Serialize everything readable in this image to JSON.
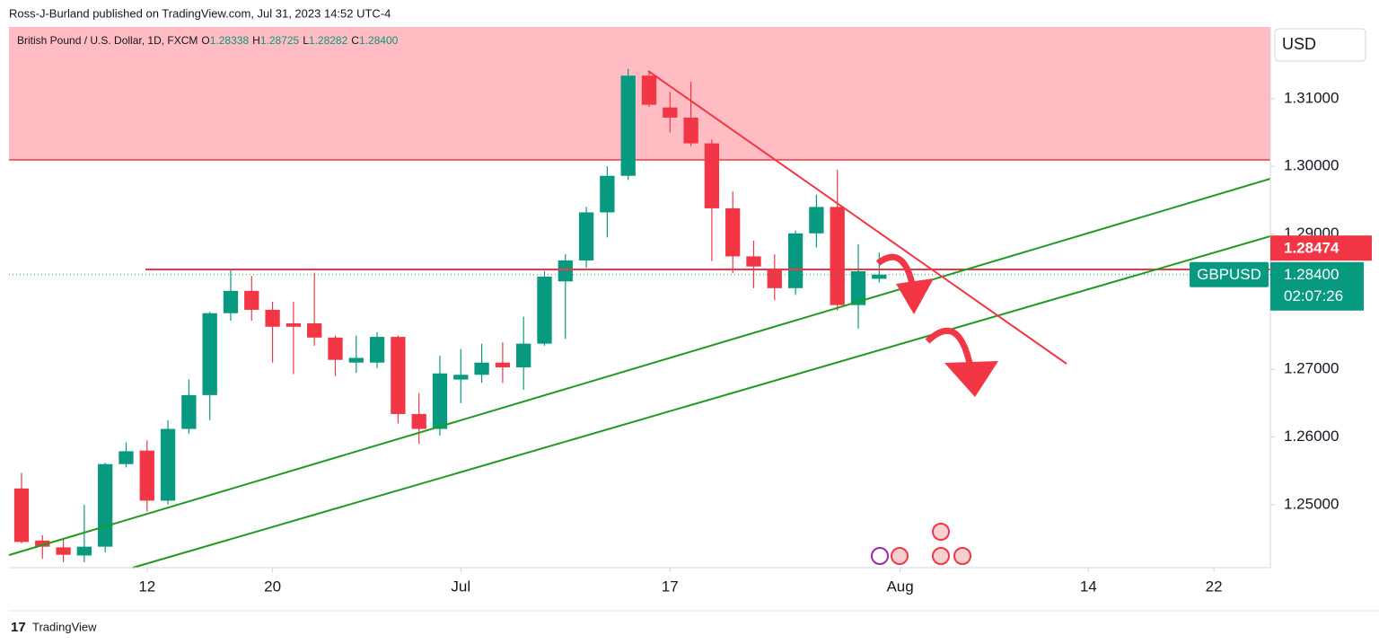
{
  "header": {
    "byline": "Ross-J-Burland published on TradingView.com, Jul 31, 2023 14:52 UTC-4"
  },
  "footer": {
    "brand": "TradingView"
  },
  "chart_data": {
    "type": "candlestick",
    "title": "British Pound / U.S. Dollar, 1D, FXCM",
    "legend_values": [
      {
        "label": "O",
        "value": "1.28338"
      },
      {
        "label": "H",
        "value": "1.28725"
      },
      {
        "label": "L",
        "value": "1.28282"
      },
      {
        "label": "C",
        "value": "1.28400"
      }
    ],
    "x": [
      0,
      1,
      2,
      3,
      4,
      5,
      6,
      7,
      8,
      9,
      10,
      11,
      12,
      13,
      14,
      15,
      16,
      17,
      18,
      19,
      20,
      21,
      22,
      23,
      24,
      25,
      26,
      27,
      28,
      29,
      30,
      31,
      32,
      33,
      34,
      35,
      36,
      37,
      38,
      39,
      40,
      41
    ],
    "open": [
      1.2524,
      1.2447,
      1.2437,
      1.2425,
      1.2438,
      1.256,
      1.258,
      1.2506,
      1.2612,
      1.2662,
      1.2783,
      1.2816,
      1.2788,
      1.2768,
      1.2768,
      1.2747,
      1.271,
      1.271,
      1.2748,
      1.2634,
      1.2612,
      1.2685,
      1.2692,
      1.271,
      1.2703,
      1.2738,
      1.283,
      1.2861,
      1.2932,
      1.2986,
      1.3134,
      1.3087,
      1.3072,
      1.3034,
      1.2938,
      1.2867,
      1.2848,
      1.282,
      1.2901,
      1.294,
      1.2795,
      1.28338
    ],
    "high": [
      1.2547,
      1.2455,
      1.245,
      1.25,
      1.2562,
      1.2592,
      1.2595,
      1.2625,
      1.2685,
      1.2785,
      1.2848,
      1.2838,
      1.28,
      1.28,
      1.2843,
      1.275,
      1.275,
      1.2755,
      1.275,
      1.2665,
      1.272,
      1.273,
      1.2738,
      1.274,
      1.2778,
      1.2845,
      1.287,
      1.294,
      1.3,
      1.3144,
      1.314,
      1.311,
      1.3125,
      1.304,
      1.2963,
      1.289,
      1.287,
      1.2905,
      1.2958,
      1.2995,
      1.2885,
      1.28725
    ],
    "low": [
      1.2443,
      1.242,
      1.2415,
      1.2415,
      1.243,
      1.2555,
      1.249,
      1.25,
      1.2605,
      1.2625,
      1.2772,
      1.2772,
      1.271,
      1.2693,
      1.2735,
      1.269,
      1.2695,
      1.2702,
      1.262,
      1.259,
      1.2602,
      1.265,
      1.268,
      1.268,
      1.267,
      1.2735,
      1.2745,
      1.285,
      1.2895,
      1.298,
      1.3088,
      1.305,
      1.303,
      1.286,
      1.2842,
      1.282,
      1.2802,
      1.281,
      1.288,
      1.2787,
      1.276,
      1.28282
    ],
    "close": [
      1.2445,
      1.2438,
      1.2426,
      1.2438,
      1.256,
      1.2579,
      1.2506,
      1.2612,
      1.2662,
      1.2783,
      1.2816,
      1.2788,
      1.2763,
      1.2763,
      1.2747,
      1.2714,
      1.2717,
      1.2748,
      1.2634,
      1.2612,
      1.2694,
      1.2692,
      1.271,
      1.2703,
      1.2738,
      1.2837,
      1.2861,
      1.2932,
      1.2986,
      1.3134,
      1.3091,
      1.3072,
      1.3034,
      1.2938,
      1.2867,
      1.2852,
      1.282,
      1.2901,
      1.294,
      1.2795,
      1.2845,
      1.284
    ],
    "xlim": [
      -0.6,
      59.7
    ],
    "xticks": [
      {
        "value": 6,
        "label": "12"
      },
      {
        "value": 12,
        "label": "20"
      },
      {
        "value": 21,
        "label": "Jul"
      },
      {
        "value": 31,
        "label": "17"
      },
      {
        "value": 42,
        "label": "Aug"
      },
      {
        "value": 51,
        "label": "14"
      },
      {
        "value": 57,
        "label": "22"
      }
    ],
    "ylim": [
      1.2407,
      1.3206
    ],
    "yticks": [
      {
        "value": 1.25,
        "label": "1.25000"
      },
      {
        "value": 1.26,
        "label": "1.26000"
      },
      {
        "value": 1.27,
        "label": "1.27000"
      },
      {
        "value": 1.29,
        "label": "1.29000"
      },
      {
        "value": 1.3,
        "label": "1.30000"
      },
      {
        "value": 1.31,
        "label": "1.31000"
      }
    ],
    "y_axis_label": "USD",
    "up_color": "#089981",
    "down_color": "#f23645",
    "price_lines": [
      {
        "name": "GBPUSD",
        "value": 1.284,
        "label": "1.28400",
        "countdown": "02:07:26",
        "color": "#089981"
      },
      {
        "value": 1.28474,
        "color": "#f23645"
      }
    ]
  }
}
